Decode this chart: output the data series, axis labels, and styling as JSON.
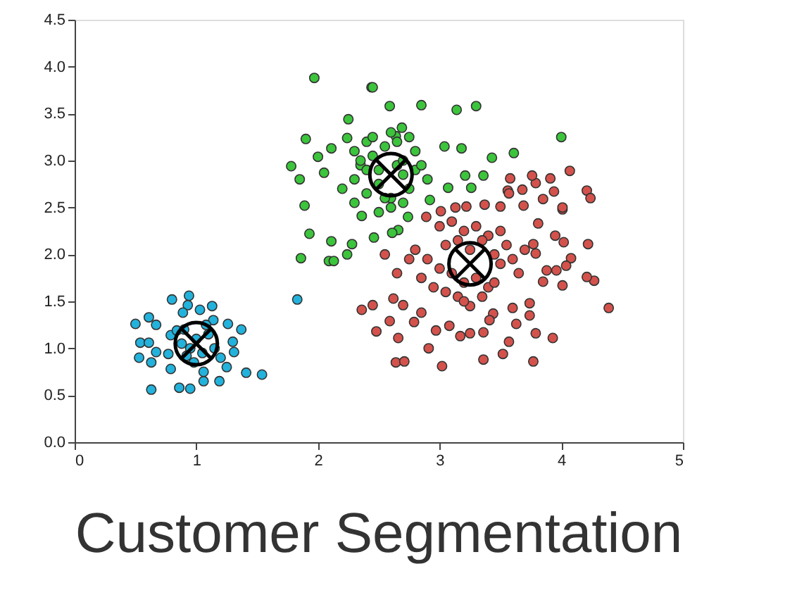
{
  "chart_data": {
    "type": "scatter",
    "title": "Customer Segmentation",
    "xlim": [
      0,
      5
    ],
    "ylim": [
      0,
      4.5
    ],
    "xticks": [
      0,
      1,
      2,
      3,
      4,
      5
    ],
    "yticks": [
      {
        "value": 0,
        "label": "0.0"
      },
      {
        "value": 0.5,
        "label": "0.5"
      },
      {
        "value": 1,
        "label": "1.0"
      },
      {
        "value": 1.5,
        "label": "1.5"
      },
      {
        "value": 2,
        "label": "2.0"
      },
      {
        "value": 2.5,
        "label": "2.5"
      },
      {
        "value": 3,
        "label": "3.0"
      },
      {
        "value": 3.5,
        "label": "3.5"
      },
      {
        "value": 4,
        "label": "4.0"
      },
      {
        "value": 4.5,
        "label": "4.5"
      }
    ],
    "grid": false,
    "marker": "circle",
    "series": [
      {
        "color": "#22b2dc",
        "x": [
          0.5,
          0.61,
          0.67,
          0.54,
          0.61,
          0.53,
          0.63,
          0.67,
          0.63,
          0.8,
          0.94,
          0.93,
          0.89,
          1.03,
          1.13,
          1.14,
          1.26,
          1.37,
          1.3,
          1.31,
          1.25,
          1.19,
          1.06,
          1.06,
          1.41,
          1.54,
          0.86,
          0.95,
          0.79,
          0.77,
          0.79,
          0.84,
          0.88,
          1.0,
          1.05,
          0.95,
          1.1,
          0.9,
          1.15,
          1.2,
          0.98,
          1.08,
          0.92,
          1.83
        ],
        "values": [
          1.26,
          1.33,
          1.25,
          1.06,
          1.06,
          0.9,
          0.85,
          0.96,
          0.56,
          1.52,
          1.56,
          1.46,
          1.38,
          1.41,
          1.45,
          1.3,
          1.26,
          1.2,
          1.07,
          0.96,
          0.8,
          0.65,
          0.65,
          0.75,
          0.74,
          0.72,
          0.58,
          0.57,
          0.78,
          0.94,
          1.14,
          1.19,
          1.05,
          1.1,
          0.95,
          1.0,
          1.15,
          1.2,
          1.0,
          0.9,
          0.85,
          1.25,
          0.92,
          1.52
        ]
      },
      {
        "color": "#3cc43c",
        "x": [
          1.97,
          2.44,
          1.9,
          1.78,
          1.85,
          1.89,
          2.0,
          2.11,
          2.05,
          2.25,
          2.24,
          2.45,
          2.59,
          2.85,
          3.14,
          3.3,
          4.0,
          3.61,
          3.43,
          3.18,
          3.04,
          3.36,
          3.21,
          3.26,
          3.07,
          2.92,
          2.74,
          2.69,
          2.64,
          1.93,
          1.86,
          2.09,
          2.13,
          2.11,
          2.24,
          2.28,
          2.36,
          2.46,
          2.66,
          2.61,
          2.3,
          2.35,
          2.4,
          2.45,
          2.5,
          2.55,
          2.6,
          2.65,
          2.7,
          2.75,
          2.8,
          2.3,
          2.4,
          2.5,
          2.6,
          2.7,
          2.8,
          2.9,
          2.35,
          2.45,
          2.55,
          2.65,
          2.75,
          2.2,
          2.85,
          2.5,
          2.6,
          2.4,
          2.7,
          2.3
        ],
        "values": [
          3.88,
          3.78,
          3.23,
          2.94,
          2.8,
          2.52,
          3.04,
          3.13,
          2.87,
          3.44,
          3.24,
          3.78,
          3.58,
          3.59,
          3.54,
          3.58,
          3.25,
          3.08,
          3.03,
          3.13,
          3.15,
          2.84,
          2.84,
          2.71,
          2.71,
          2.58,
          2.4,
          3.35,
          3.26,
          2.22,
          1.96,
          1.93,
          1.93,
          2.14,
          2.0,
          2.11,
          2.41,
          2.18,
          2.26,
          2.23,
          3.1,
          2.95,
          3.2,
          3.05,
          2.75,
          3.15,
          2.6,
          2.95,
          3.0,
          2.7,
          3.1,
          2.8,
          2.65,
          2.9,
          3.3,
          2.55,
          2.9,
          2.8,
          3.0,
          3.25,
          2.6,
          3.2,
          3.25,
          2.7,
          2.95,
          2.45,
          2.5,
          2.9,
          2.85,
          2.55
        ]
      },
      {
        "color": "#d4524c",
        "x": [
          4.39,
          4.22,
          4.27,
          4.21,
          3.93,
          3.79,
          3.77,
          3.52,
          3.36,
          3.02,
          2.91,
          2.64,
          2.71,
          2.48,
          2.45,
          2.66,
          2.59,
          2.79,
          2.97,
          3.17,
          3.25,
          3.36,
          3.57,
          3.63,
          3.74,
          3.74,
          3.6,
          3.44,
          3.41,
          3.08,
          2.85,
          2.7,
          2.62,
          2.36,
          4.01,
          4.02,
          3.95,
          4.08,
          4.04,
          3.96,
          3.88,
          3.85,
          3.79,
          3.81,
          3.77,
          4.01,
          4.07,
          3.91,
          3.79,
          3.76,
          3.58,
          3.94,
          3.68,
          3.56,
          3.57,
          3.85,
          4.21,
          4.24,
          4.01,
          3.69,
          3.5,
          3.37,
          3.22,
          3.13,
          3.01,
          2.89,
          3.0,
          3.1,
          3.2,
          3.3,
          3.4,
          3.5,
          3.05,
          3.15,
          3.25,
          3.35,
          3.45,
          3.55,
          2.9,
          3.0,
          3.1,
          3.2,
          3.3,
          3.4,
          3.5,
          3.6,
          2.8,
          2.95,
          3.05,
          3.15,
          3.35,
          3.45,
          2.75,
          2.85,
          3.65,
          3.7,
          2.55,
          2.65,
          3.25,
          3.2
        ],
        "values": [
          1.43,
          2.11,
          1.72,
          1.76,
          1.11,
          1.16,
          0.86,
          0.94,
          0.88,
          0.81,
          1.0,
          0.85,
          0.86,
          1.18,
          1.46,
          1.11,
          1.29,
          1.28,
          1.19,
          1.13,
          1.16,
          1.17,
          1.07,
          1.26,
          1.35,
          1.48,
          1.43,
          1.37,
          1.3,
          1.24,
          1.38,
          1.46,
          1.53,
          1.41,
          1.67,
          2.13,
          2.2,
          1.96,
          1.88,
          1.83,
          1.83,
          1.71,
          2.01,
          2.33,
          2.11,
          2.48,
          2.89,
          2.81,
          2.76,
          2.84,
          2.81,
          2.67,
          2.69,
          2.68,
          2.65,
          2.59,
          2.68,
          2.6,
          2.5,
          2.52,
          2.51,
          2.53,
          2.51,
          2.5,
          2.46,
          2.4,
          2.3,
          2.35,
          2.25,
          2.3,
          2.2,
          2.25,
          2.1,
          2.15,
          2.05,
          2.15,
          2.0,
          2.1,
          1.95,
          1.85,
          1.8,
          1.7,
          1.75,
          1.65,
          1.9,
          1.95,
          2.05,
          1.65,
          1.6,
          1.55,
          1.55,
          1.7,
          1.95,
          1.75,
          1.8,
          2.05,
          2.0,
          1.8,
          1.45,
          1.5
        ]
      },
      {
        "color": "#000000",
        "marker": "cross",
        "x": [
          1.0,
          2.6,
          3.25
        ],
        "values": [
          1.05,
          2.85,
          1.9
        ]
      }
    ]
  }
}
